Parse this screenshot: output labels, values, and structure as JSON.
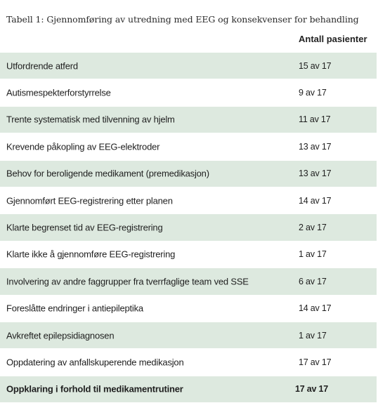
{
  "caption": "Tabell 1: Gjennomføring av utredning med EEG og konsekvenser for behandling",
  "column_header": "Antall pasienter",
  "rows": [
    {
      "label": "Utfordrende atferd",
      "value": "15 av 17"
    },
    {
      "label": "Autismespekterforstyrrelse",
      "value": "9 av 17"
    },
    {
      "label": "Trente systematisk med tilvenning av hjelm",
      "value": "11 av 17"
    },
    {
      "label": "Krevende påkopling av EEG-elektroder",
      "value": "13 av 17"
    },
    {
      "label": "Behov for beroligende medikament (premedikasjon)",
      "value": "13 av 17"
    },
    {
      "label": "Gjennomført EEG-registrering etter planen",
      "value": "14 av 17"
    },
    {
      "label": "Klarte begrenset tid av EEG-registrering",
      "value": "2 av 17"
    },
    {
      "label": "Klarte ikke å gjennomføre EEG-registrering",
      "value": "1 av 17"
    },
    {
      "label": "Involvering av andre faggrupper fra tverrfaglige team ved SSE",
      "value": "6 av 17"
    },
    {
      "label": "Foreslåtte endringer i antiepileptika",
      "value": "14 av 17"
    },
    {
      "label": "Avkreftet epilepsidiagnosen",
      "value": "1 av 17"
    },
    {
      "label": "Oppdatering av anfallskuperende medikasjon",
      "value": "17 av 17"
    },
    {
      "label": "Oppklaring i forhold til medikamentrutiner",
      "value": "17 av 17"
    }
  ],
  "colors": {
    "shaded_row": "#dde9df",
    "text": "#1f1f1f"
  }
}
